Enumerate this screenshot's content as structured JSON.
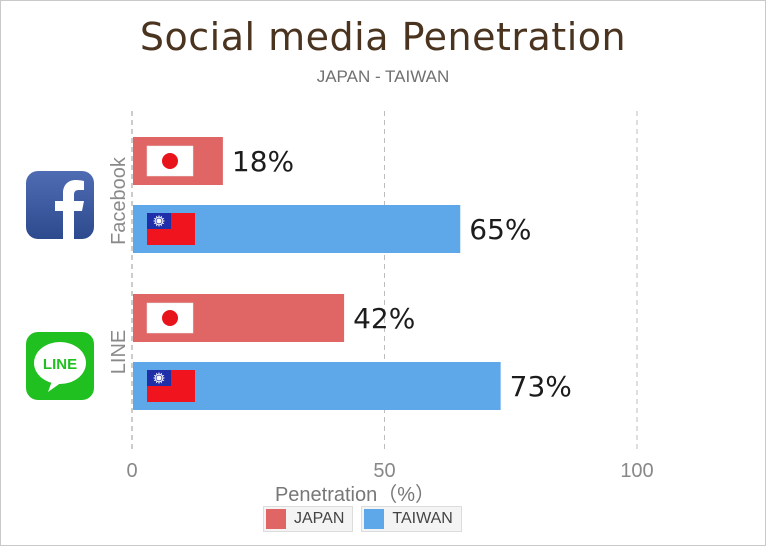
{
  "chart_data": {
    "type": "bar",
    "orientation": "horizontal",
    "title": "Social media Penetration",
    "subtitle": "JAPAN - TAIWAN",
    "xlabel": "Penetration（%）",
    "ylabel": "",
    "xlim": [
      0,
      120
    ],
    "xticks": [
      0,
      50,
      100
    ],
    "categories": [
      "Facebook",
      "LINE"
    ],
    "series": [
      {
        "name": "JAPAN",
        "color": "#e06666",
        "flag": "japan-flag-icon",
        "values": [
          18,
          42
        ],
        "labels": [
          "18%",
          "42%"
        ]
      },
      {
        "name": "TAIWAN",
        "color": "#5ea8ea",
        "flag": "taiwan-flag-icon",
        "values": [
          65,
          73
        ],
        "labels": [
          "65%",
          "73%"
        ]
      }
    ],
    "category_icons": [
      "facebook-logo-icon",
      "line-logo-icon"
    ],
    "grid": "vertical-dashed",
    "legend": "bottom-center"
  }
}
